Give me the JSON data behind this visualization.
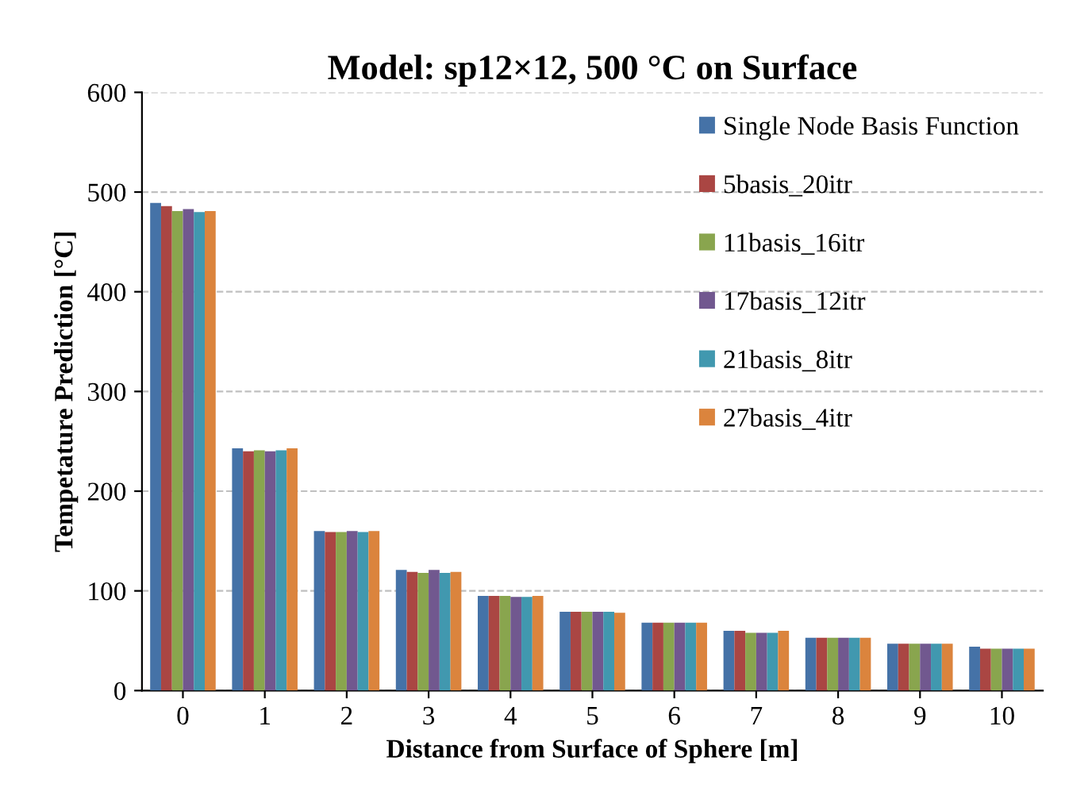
{
  "chart_data": {
    "type": "bar",
    "title": "Model: sp12×12, 500 °C on Surface",
    "xlabel": "Distance from Surface of Sphere [m]",
    "ylabel": "Tempetature Prediction [°C]",
    "categories": [
      "0",
      "1",
      "2",
      "3",
      "4",
      "5",
      "6",
      "7",
      "8",
      "9",
      "10"
    ],
    "series": [
      {
        "name": "Single Node Basis Function",
        "color": "#4572a7",
        "values": [
          489,
          243,
          160,
          121,
          95,
          79,
          68,
          60,
          53,
          47,
          44
        ]
      },
      {
        "name": "5basis_20itr",
        "color": "#aa4643",
        "values": [
          486,
          240,
          159,
          119,
          95,
          79,
          68,
          60,
          53,
          47,
          42
        ]
      },
      {
        "name": "11basis_16itr",
        "color": "#89a54e",
        "values": [
          481,
          241,
          159,
          118,
          95,
          79,
          68,
          58,
          53,
          47,
          42
        ]
      },
      {
        "name": "17basis_12itr",
        "color": "#71588f",
        "values": [
          483,
          240,
          160,
          121,
          94,
          79,
          68,
          58,
          53,
          47,
          42
        ]
      },
      {
        "name": "21basis_8itr",
        "color": "#4198af",
        "values": [
          480,
          241,
          159,
          118,
          94,
          79,
          68,
          58,
          53,
          47,
          42
        ]
      },
      {
        "name": "27basis_4itr",
        "color": "#db843d",
        "values": [
          481,
          243,
          160,
          119,
          95,
          78,
          68,
          60,
          53,
          47,
          42
        ]
      }
    ],
    "ylim": [
      0,
      600
    ],
    "yticks": [
      0,
      100,
      200,
      300,
      400,
      500,
      600
    ],
    "grid": "y",
    "legend": "top right"
  }
}
